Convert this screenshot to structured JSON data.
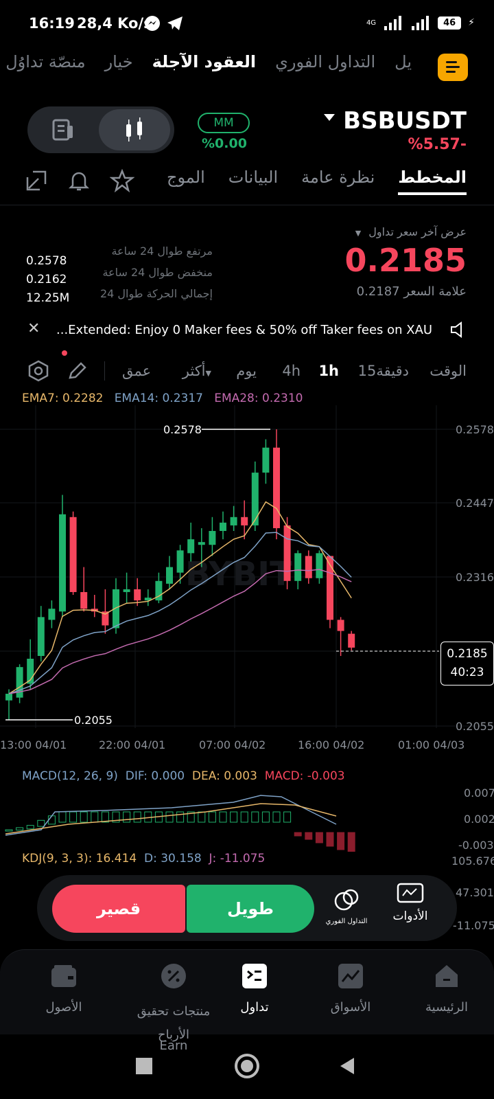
{
  "status_bar": {
    "time": "16:19",
    "speed": "28,4 Ko/s",
    "network": "4G",
    "battery": "46"
  },
  "top_nav": {
    "tabs": [
      "يل",
      "التداول الفوري",
      "العقود الآجلة",
      "خيار",
      "منصّة تداوُل الا"
    ],
    "active_tab": "العقود الآجلة"
  },
  "header": {
    "symbol": "BSBUSDT",
    "change": "%5.57-",
    "mm_label": "MM",
    "mm_value": "%0.00"
  },
  "sub_tabs": {
    "items": [
      "المخطط",
      "نظرة عامة",
      "البيانات",
      "الموج"
    ],
    "active": "المخطط"
  },
  "price_panel": {
    "last_price_label": "عرض آخر سعر تداول",
    "last_price": "0.2185",
    "mark_price": "علامة السعر 0.2187",
    "stats": [
      {
        "label": "مرتفع طوال 24 ساعة",
        "value": "0.2578"
      },
      {
        "label": "منخفض طوال 24 ساعة",
        "value": "0.2162"
      },
      {
        "label": "إجمالي الحركة طوال 24",
        "value": "12.25M"
      }
    ]
  },
  "banner": {
    "text": "...Extended: Enjoy 0 Maker fees & 50% off Taker fees on XAU"
  },
  "toolbar": {
    "time_label": "الوقت",
    "m15": "15دقيقة",
    "h1": "1h",
    "h4": "4h",
    "day": "يوم",
    "more": "أكثر",
    "depth": "عمق"
  },
  "ema": {
    "ema7": "EMA7: 0.2282",
    "ema14": "EMA14: 0.2317",
    "ema28": "EMA28: 0.2310",
    "ema7_color": "#e8b86a",
    "ema14_color": "#7fa3c8",
    "ema28_color": "#c46bb0"
  },
  "chart": {
    "high_marker": "0.2578",
    "low_marker": "0.2055",
    "current_price": "0.2185",
    "countdown": "40:23",
    "watermark": "BYBIT"
  },
  "chart_data": {
    "type": "candlestick",
    "y_ticks": [
      "0.2578",
      "0.2447",
      "0.2316",
      "0.2185",
      "0.2055"
    ],
    "ylim": [
      0.2055,
      0.2578
    ],
    "x_ticks": [
      "13:00 04/01",
      "22:00 04/01",
      "07:00 04/02",
      "16:00 04/02",
      "01:00 04/03"
    ],
    "candles": [
      [
        0.209,
        0.2102,
        0.2055,
        0.211
      ],
      [
        0.2095,
        0.215,
        0.2085,
        0.2155
      ],
      [
        0.212,
        0.2165,
        0.211,
        0.22
      ],
      [
        0.217,
        0.224,
        0.216,
        0.226
      ],
      [
        0.2235,
        0.2255,
        0.222,
        0.227
      ],
      [
        0.225,
        0.2425,
        0.224,
        0.246
      ],
      [
        0.242,
        0.2285,
        0.228,
        0.243
      ],
      [
        0.2285,
        0.2255,
        0.225,
        0.233
      ],
      [
        0.2255,
        0.225,
        0.224,
        0.228
      ],
      [
        0.225,
        0.2225,
        0.221,
        0.229
      ],
      [
        0.222,
        0.229,
        0.221,
        0.231
      ],
      [
        0.2285,
        0.229,
        0.2265,
        0.232
      ],
      [
        0.229,
        0.227,
        0.226,
        0.231
      ],
      [
        0.227,
        0.2275,
        0.226,
        0.229
      ],
      [
        0.227,
        0.2305,
        0.2265,
        0.232
      ],
      [
        0.23,
        0.233,
        0.229,
        0.235
      ],
      [
        0.232,
        0.236,
        0.23,
        0.237
      ],
      [
        0.2355,
        0.238,
        0.234,
        0.241
      ],
      [
        0.237,
        0.2375,
        0.233,
        0.24
      ],
      [
        0.237,
        0.2395,
        0.235,
        0.242
      ],
      [
        0.2395,
        0.241,
        0.238,
        0.243
      ],
      [
        0.2405,
        0.242,
        0.2395,
        0.244
      ],
      [
        0.242,
        0.2405,
        0.238,
        0.245
      ],
      [
        0.2405,
        0.25,
        0.2395,
        0.252
      ],
      [
        0.25,
        0.2545,
        0.248,
        0.256
      ],
      [
        0.2545,
        0.24,
        0.238,
        0.2578
      ],
      [
        0.2405,
        0.2305,
        0.229,
        0.242
      ],
      [
        0.2305,
        0.2355,
        0.229,
        0.236
      ],
      [
        0.235,
        0.231,
        0.23,
        0.236
      ],
      [
        0.231,
        0.2355,
        0.23,
        0.236
      ],
      [
        0.235,
        0.2235,
        0.222,
        0.235
      ],
      [
        0.2235,
        0.2215,
        0.217,
        0.224
      ],
      [
        0.221,
        0.2185,
        0.218,
        0.2215
      ]
    ]
  },
  "macd": {
    "title": "MACD(12, 26, 9)",
    "dif": "DIF: 0.000",
    "dea": "DEA: 0.003",
    "macd": "MACD: -0.003",
    "axis": [
      "0.007",
      "0.002",
      "-0.003"
    ]
  },
  "kdj": {
    "title": "KDJ(9, 3, 3): 16.414",
    "d": "D: 30.158",
    "j": "J: -11.075",
    "axis": [
      "105.676",
      "47.301",
      "-11.075"
    ]
  },
  "trade": {
    "short": "قصير",
    "long": "طويل",
    "spot": "التداول الفوري",
    "tools": "الأدوات"
  },
  "bottom_nav": {
    "items": [
      "الرئيسية",
      "الأسواق",
      "تداول",
      "منتجات تحقيق الأرباح",
      "الأصول"
    ],
    "earn_sub": "Earn",
    "active": "تداول"
  }
}
